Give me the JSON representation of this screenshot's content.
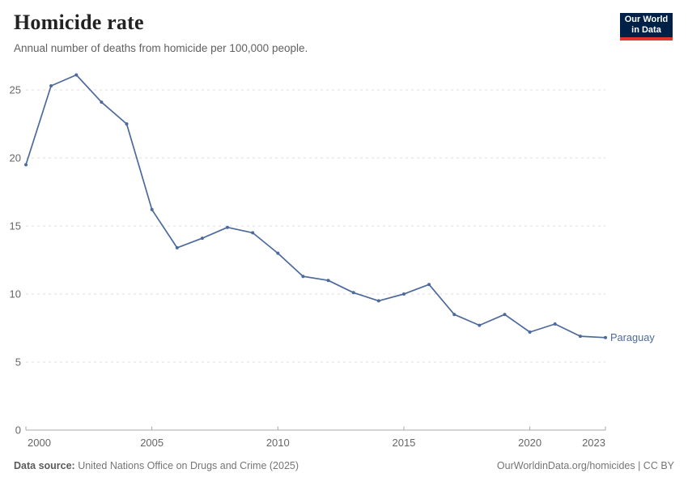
{
  "header": {
    "title": "Homicide rate",
    "subtitle": "Annual number of deaths from homicide per 100,000 people."
  },
  "logo": {
    "line1": "Our World",
    "line2": "in Data",
    "bg_color": "#002147",
    "accent_color": "#e0362c"
  },
  "chart_data": {
    "type": "line",
    "title": "Homicide rate",
    "entity_label": "Paraguay",
    "x": [
      2000,
      2001,
      2002,
      2003,
      2004,
      2005,
      2006,
      2007,
      2008,
      2009,
      2010,
      2011,
      2012,
      2013,
      2014,
      2015,
      2016,
      2017,
      2018,
      2019,
      2020,
      2021,
      2022,
      2023
    ],
    "values": [
      19.5,
      25.3,
      26.1,
      24.1,
      22.5,
      16.2,
      13.4,
      14.1,
      14.9,
      14.5,
      13.0,
      11.3,
      11.0,
      10.1,
      9.5,
      10.0,
      10.7,
      8.5,
      7.7,
      8.5,
      7.2,
      7.8,
      6.9,
      6.8
    ],
    "xlabel": "",
    "ylabel": "",
    "xlim": [
      2000,
      2023
    ],
    "ylim": [
      0,
      26.8
    ],
    "yticks": [
      0,
      5,
      10,
      15,
      20,
      25
    ],
    "xticks": [
      2000,
      2005,
      2010,
      2015,
      2020,
      2023
    ],
    "grid": "horizontal-dashed",
    "legend_position": "end-of-line",
    "line_color": "#4c6a9c",
    "grid_color": "#dddddd",
    "axis_line_color": "#a8a8a8",
    "tick_label_color": "#666666"
  },
  "footer": {
    "source_label": "Data source:",
    "source_text": " United Nations Office on Drugs and Crime (2025)",
    "right_text": "OurWorldinData.org/homicides | CC BY"
  }
}
